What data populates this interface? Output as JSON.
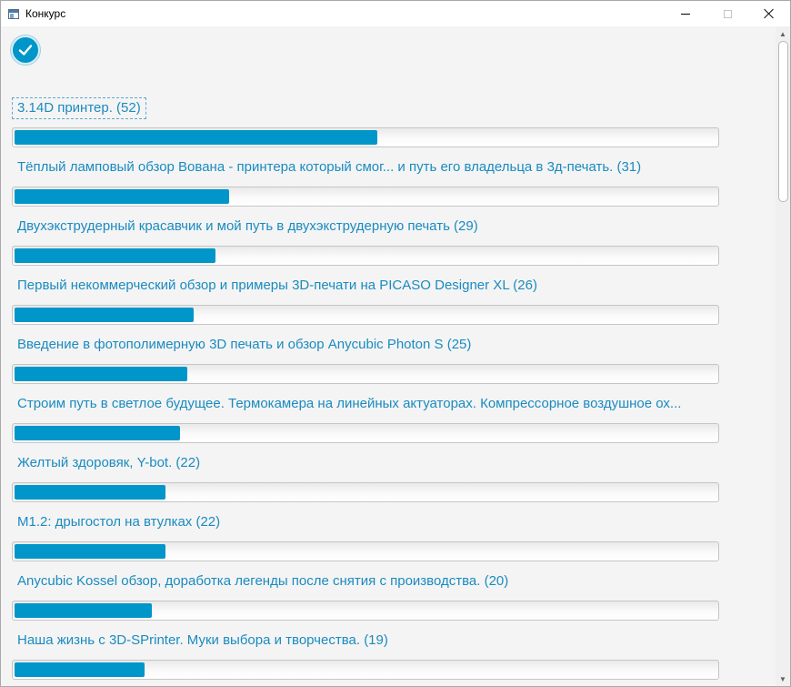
{
  "window": {
    "title": "Конкурс",
    "app_icon": "window-app-icon",
    "controls": {
      "minimize": "minimize-icon",
      "maximize": "maximize-icon",
      "close": "close-icon"
    }
  },
  "toolbar": {
    "check_icon": "checkmark-icon",
    "accent_color": "#0096c9"
  },
  "entries": [
    {
      "label": "3.14D принтер. (52)",
      "progress": 0.515
    },
    {
      "label": "Тёплый ламповый обзор Вована - принтера который смог... и путь его владельца в 3д-печать. (31)",
      "progress": 0.305
    },
    {
      "label": "Двухэкструдерный красавчик и мой путь в двухэкструдерную печать (29)",
      "progress": 0.285
    },
    {
      "label": "Первый некоммерческий обзор и примеры 3D-печати на PICASO Designer XL (26)",
      "progress": 0.255
    },
    {
      "label": "Введение в фотополимерную 3D печать и обзор Anycubic Photon S (25)",
      "progress": 0.245
    },
    {
      "label": "Строим путь в светлое будущее. Термокамера на линейных актуаторах. Компрессорное воздушное ох...",
      "progress": 0.235
    },
    {
      "label": "Желтый здоровяк, Y-bot. (22)",
      "progress": 0.215
    },
    {
      "label": "M1.2: дрыгостол на втулках (22)",
      "progress": 0.215
    },
    {
      "label": "Anycubic Kossel обзор, доработка легенды после снятия с производства. (20)",
      "progress": 0.195
    },
    {
      "label": "Наша жизнь с 3D-SPrinter. Муки выбора и творчества. (19)",
      "progress": 0.185
    }
  ]
}
